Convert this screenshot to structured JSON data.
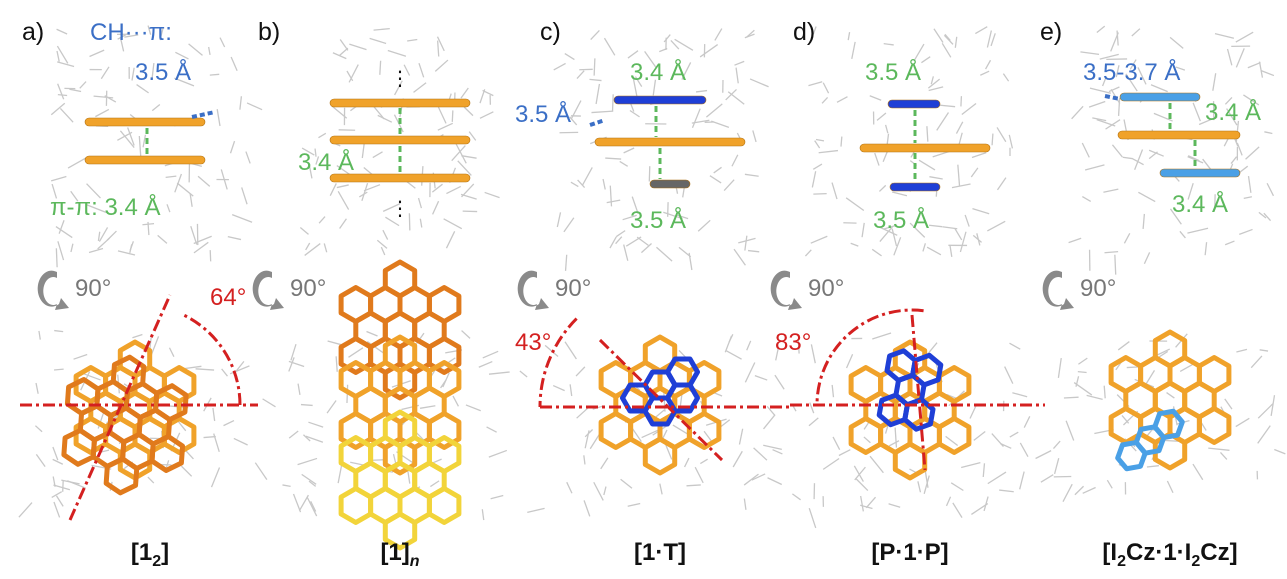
{
  "panels": [
    {
      "label": "a)",
      "annotations": [
        {
          "text": "CH···π:",
          "color": "#3b6fc6"
        },
        {
          "text": "3.5 Å",
          "color": "#3b6fc6"
        },
        {
          "text": "π-π: 3.4 Å",
          "color": "#5cb85c"
        }
      ],
      "rotation": "90°",
      "angle": "64°",
      "angle_color": "#d42020",
      "name": [
        {
          "text": "[1"
        },
        {
          "text": "2",
          "style": "sub"
        },
        {
          "text": "]"
        }
      ]
    },
    {
      "label": "b)",
      "annotations": [
        {
          "text": "3.4 Å",
          "color": "#5cb85c"
        }
      ],
      "rotation": "90°",
      "name": [
        {
          "text": "[1]"
        },
        {
          "text": "n",
          "style": "sub-italic"
        }
      ]
    },
    {
      "label": "c)",
      "annotations": [
        {
          "text": "3.4 Å",
          "color": "#5cb85c"
        },
        {
          "text": "3.5 Å",
          "color": "#3b6fc6"
        },
        {
          "text": "3.5 Å",
          "color": "#5cb85c"
        }
      ],
      "rotation": "90°",
      "angle": "43°",
      "angle_color": "#d42020",
      "name": [
        {
          "text": "[1·T]"
        }
      ]
    },
    {
      "label": "d)",
      "annotations": [
        {
          "text": "3.5 Å",
          "color": "#5cb85c"
        },
        {
          "text": "3.5 Å",
          "color": "#5cb85c"
        }
      ],
      "rotation": "90°",
      "angle": "83°",
      "angle_color": "#d42020",
      "name": [
        {
          "text": "[P·1·P]"
        }
      ]
    },
    {
      "label": "e)",
      "annotations": [
        {
          "text": "3.5-3.7 Å",
          "color": "#3b6fc6"
        },
        {
          "text": "3.4 Å",
          "color": "#5cb85c"
        },
        {
          "text": "3.4 Å",
          "color": "#5cb85c"
        }
      ],
      "rotation": "90°",
      "name": [
        {
          "text": "[I"
        },
        {
          "text": "2",
          "style": "sub"
        },
        {
          "text": "Cz·1·I"
        },
        {
          "text": "2",
          "style": "sub"
        },
        {
          "text": "Cz]"
        }
      ]
    }
  ]
}
